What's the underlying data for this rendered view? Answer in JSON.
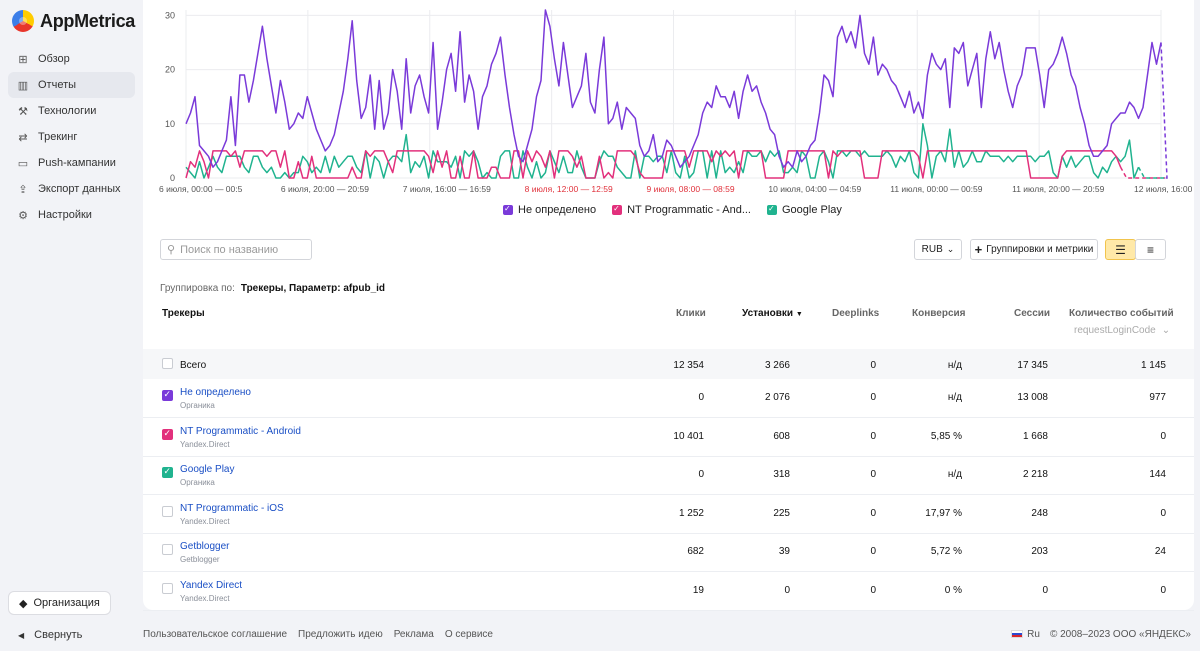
{
  "app": {
    "name": "AppMetrica"
  },
  "sidebar": {
    "items": [
      {
        "label": "Обзор",
        "icon": "grid-icon"
      },
      {
        "label": "Отчеты",
        "icon": "chart-icon",
        "active": true
      },
      {
        "label": "Технологии",
        "icon": "wrench-icon"
      },
      {
        "label": "Трекинг",
        "icon": "tracking-icon"
      },
      {
        "label": "Push-кампании",
        "icon": "push-icon"
      },
      {
        "label": "Экспорт данных",
        "icon": "export-icon"
      },
      {
        "label": "Настройки",
        "icon": "gear-icon"
      }
    ],
    "org_label": "Организация",
    "collapse_label": "Свернуть"
  },
  "chart_data": {
    "type": "line",
    "x_tick_labels": [
      "6 июля, 00:00 — 00:5",
      "6 июля, 20:00 — 20:59",
      "7 июля, 16:00 — 16:59",
      "8 июля, 12:00 — 12:59",
      "9 июля, 08:00 — 08:59",
      "10 июля, 04:00 — 04:59",
      "11 июля, 00:00 — 00:59",
      "11 июля, 20:00 — 20:59",
      "12 июля, 16:00 — 16:59"
    ],
    "weekend_ticks": [
      3,
      4
    ],
    "yticks": [
      0,
      10,
      20,
      30
    ],
    "ylim": [
      0,
      31
    ],
    "grid": true,
    "legend_position": "bottom",
    "series": [
      {
        "name": "Не определено",
        "color": "#7a3ad9",
        "values": [
          10,
          12,
          15,
          6,
          5,
          4,
          2,
          3,
          5,
          7,
          15,
          6,
          19,
          19,
          14,
          18,
          23,
          28,
          22,
          17,
          12,
          18,
          14,
          9,
          10,
          12,
          11,
          15,
          12,
          9,
          7,
          5,
          6,
          8,
          12,
          16,
          22,
          29,
          18,
          11,
          13,
          19,
          9,
          18,
          9,
          12,
          20,
          16,
          9,
          22,
          12,
          17,
          19,
          15,
          12,
          25,
          9,
          14,
          20,
          23,
          16,
          27,
          14,
          19,
          16,
          9,
          15,
          17,
          21,
          23,
          26,
          19,
          13,
          8,
          4,
          3,
          6,
          9,
          15,
          18,
          31,
          28,
          22,
          17,
          25,
          19,
          13,
          15,
          17,
          23,
          14,
          12,
          20,
          26,
          10,
          11,
          14,
          9,
          13,
          12,
          11,
          6,
          4,
          5,
          8,
          3,
          4,
          7,
          6,
          4,
          2,
          3,
          4,
          6,
          8,
          12,
          14,
          13,
          17,
          15,
          15,
          13,
          16,
          11,
          16,
          19,
          16,
          17,
          14,
          12,
          9,
          8,
          4,
          2,
          3,
          2,
          5,
          3,
          4,
          6,
          7,
          12,
          19,
          18,
          15,
          26,
          28,
          25,
          27,
          24,
          30,
          23,
          21,
          26,
          19,
          21,
          20,
          18,
          17,
          15,
          13,
          16,
          12,
          14,
          11,
          19,
          23,
          21,
          20,
          22,
          13,
          24,
          23,
          25,
          17,
          20,
          23,
          13,
          22,
          27,
          22,
          25,
          20,
          16,
          13,
          17,
          19,
          24,
          24,
          24,
          19,
          13,
          20,
          21,
          23,
          26,
          23,
          19,
          17,
          13,
          10,
          6,
          4,
          4,
          5,
          6,
          10,
          11,
          12,
          12,
          14,
          13,
          11,
          13,
          19,
          25,
          21,
          25
        ]
      },
      {
        "name": "NT Programmatic - And...",
        "color": "#e2307c",
        "values": [
          0,
          3,
          2,
          5,
          3,
          0,
          5,
          5,
          5,
          5,
          4,
          5,
          2,
          5,
          5,
          5,
          5,
          5,
          4,
          5,
          5,
          2,
          5,
          0,
          0,
          3,
          0,
          0,
          4,
          0,
          0,
          0,
          0,
          0,
          0,
          0,
          0,
          2,
          0,
          0,
          5,
          4,
          5,
          5,
          5,
          3,
          1,
          5,
          5,
          5,
          5,
          5,
          5,
          5,
          4,
          1,
          5,
          2,
          5,
          0,
          0,
          4,
          0,
          0,
          5,
          0,
          0,
          0,
          2,
          2,
          0,
          0,
          0,
          5,
          5,
          0,
          5,
          3,
          5,
          4,
          2,
          5,
          0,
          5,
          5,
          5,
          4,
          2,
          4,
          0,
          0,
          0,
          4,
          0,
          1,
          0,
          5,
          5,
          5,
          5,
          4,
          1,
          0,
          0,
          0,
          0,
          0,
          5,
          5,
          5,
          5,
          5,
          2,
          5,
          5,
          5,
          5,
          3,
          5,
          4,
          5,
          4,
          5,
          0,
          5,
          5,
          5,
          5,
          5,
          0,
          0,
          0,
          0,
          0,
          5,
          5,
          5,
          5,
          5,
          5,
          5,
          5,
          5,
          0,
          5,
          4,
          5,
          5,
          5,
          5,
          5,
          0,
          0,
          0,
          0,
          5,
          5,
          5,
          5,
          5,
          5,
          5,
          5,
          4,
          0,
          5,
          5,
          5,
          5,
          5,
          5,
          5,
          5,
          5,
          5,
          5,
          5,
          5,
          5,
          5,
          5,
          5,
          5,
          5,
          5,
          5,
          5,
          5,
          0,
          0,
          0,
          0,
          0,
          0,
          0,
          4,
          5,
          5,
          5,
          5,
          5,
          5,
          5,
          5,
          5,
          5,
          5,
          4,
          2
        ]
      },
      {
        "name": "Google Play",
        "color": "#20b38f",
        "values": [
          2,
          1,
          0,
          3,
          0,
          2,
          4,
          2,
          1,
          4,
          4,
          4,
          4,
          2,
          1,
          4,
          4,
          2,
          1,
          2,
          0,
          0,
          1,
          0,
          1,
          1,
          4,
          3,
          1,
          2,
          1,
          4,
          1,
          4,
          2,
          3,
          4,
          4,
          2,
          1,
          5,
          0,
          4,
          3,
          0,
          3,
          4,
          4,
          3,
          8,
          1,
          3,
          2,
          4,
          0,
          5,
          3,
          3,
          3,
          2,
          4,
          0,
          5,
          4,
          5,
          3,
          0,
          1,
          0,
          0,
          4,
          5,
          5,
          0,
          0,
          5,
          2,
          0,
          3,
          0,
          1,
          5,
          3,
          1,
          4,
          1,
          1,
          5,
          2,
          0,
          0,
          0,
          3,
          5,
          4,
          4,
          2,
          1,
          0,
          0,
          5,
          0,
          4,
          4,
          3,
          4,
          4,
          1,
          5,
          1,
          0,
          4,
          0,
          1,
          5,
          5,
          0,
          5,
          0,
          5,
          1,
          2,
          1,
          3,
          1,
          5,
          4,
          4,
          5,
          3,
          5,
          4,
          5,
          1,
          1,
          2,
          1,
          5,
          4,
          0,
          0,
          4,
          5,
          3,
          0,
          5,
          5,
          4,
          5,
          5,
          4,
          5,
          4,
          4,
          4,
          4,
          5,
          4,
          2,
          4,
          3,
          5,
          1,
          0,
          10,
          6,
          0,
          4,
          5,
          3,
          9,
          2,
          5,
          2,
          3,
          5,
          3,
          3,
          5,
          4,
          4,
          4,
          3,
          4,
          3,
          4,
          4,
          4,
          4,
          3,
          4,
          4,
          5,
          1,
          0,
          4,
          2,
          4,
          2,
          3,
          4,
          4,
          1,
          0,
          2,
          1,
          3,
          4,
          3,
          4,
          7,
          0,
          2
        ]
      }
    ]
  },
  "toolbar": {
    "search_placeholder": "Поиск по названию",
    "currency": "RUB",
    "groupings_label": "Группировки и метрики"
  },
  "grouping": {
    "label": "Группировка по:",
    "value": "Трекеры, Параметр: afpub_id"
  },
  "table": {
    "headers": [
      "Трекеры",
      "Клики",
      "Установки",
      "Deeplinks",
      "Конверсия",
      "Сессии",
      "Количество событий"
    ],
    "sort_arrow": "▼",
    "event_filter": "requestLoginCode",
    "total": {
      "name": "Всего",
      "values": [
        "12 354",
        "3 266",
        "0",
        "н/д",
        "17 345",
        "1 145"
      ]
    },
    "rows": [
      {
        "name": "Не определено",
        "sub": "Органика",
        "checked": true,
        "color": "#7a3ad9",
        "values": [
          "0",
          "2 076",
          "0",
          "н/д",
          "13 008",
          "977"
        ]
      },
      {
        "name": "NT Programmatic - Android",
        "sub": "Yandex.Direct",
        "checked": true,
        "color": "#e2307c",
        "values": [
          "10 401",
          "608",
          "0",
          "5,85 %",
          "1 668",
          "0"
        ]
      },
      {
        "name": "Google Play",
        "sub": "Органика",
        "checked": true,
        "color": "#20b38f",
        "values": [
          "0",
          "318",
          "0",
          "н/д",
          "2 218",
          "144"
        ]
      },
      {
        "name": "NT Programmatic - iOS",
        "sub": "Yandex.Direct",
        "checked": false,
        "color": "",
        "values": [
          "1 252",
          "225",
          "0",
          "17,97 %",
          "248",
          "0"
        ]
      },
      {
        "name": "Getblogger",
        "sub": "Getblogger",
        "checked": false,
        "color": "",
        "values": [
          "682",
          "39",
          "0",
          "5,72 %",
          "203",
          "24"
        ]
      },
      {
        "name": "Yandex Direct",
        "sub": "Yandex.Direct",
        "checked": false,
        "color": "",
        "values": [
          "19",
          "0",
          "0",
          "0 %",
          "0",
          "0"
        ]
      }
    ]
  },
  "footer": {
    "links": [
      "Пользовательское соглашение",
      "Предложить идею",
      "Реклама",
      "О сервисе"
    ],
    "lang": "Ru",
    "copyright": "© 2008–2023 ООО «ЯНДЕКС»"
  }
}
